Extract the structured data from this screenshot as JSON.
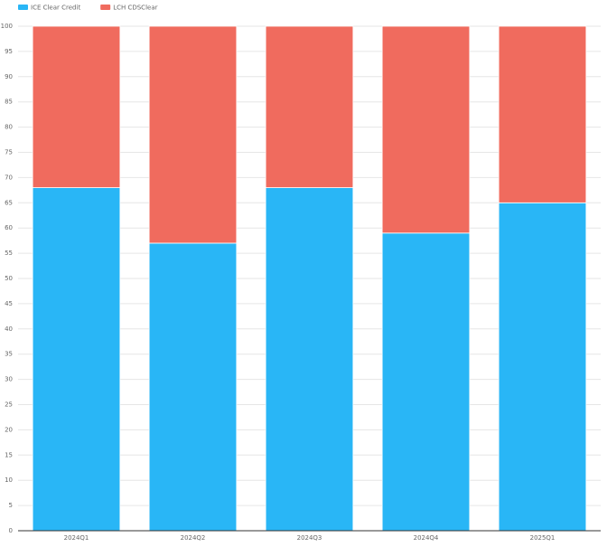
{
  "chart_data": {
    "type": "stacked_bar",
    "categories": [
      "2024Q1",
      "2024Q2",
      "2024Q3",
      "2024Q4",
      "2025Q1"
    ],
    "series": [
      {
        "name": "ICE Clear Credit",
        "color": "#29b6f6",
        "values": [
          68,
          57,
          68,
          59,
          65
        ]
      },
      {
        "name": "LCH CDSClear",
        "color": "#f06b5e",
        "values": [
          32,
          43,
          32,
          41,
          35
        ]
      }
    ],
    "ylim": [
      0,
      100
    ],
    "yticks": [
      0,
      5,
      10,
      15,
      20,
      25,
      30,
      35,
      40,
      45,
      50,
      55,
      60,
      65,
      70,
      75,
      80,
      85,
      90,
      95,
      100
    ],
    "grid": true,
    "legend": "top-left"
  }
}
